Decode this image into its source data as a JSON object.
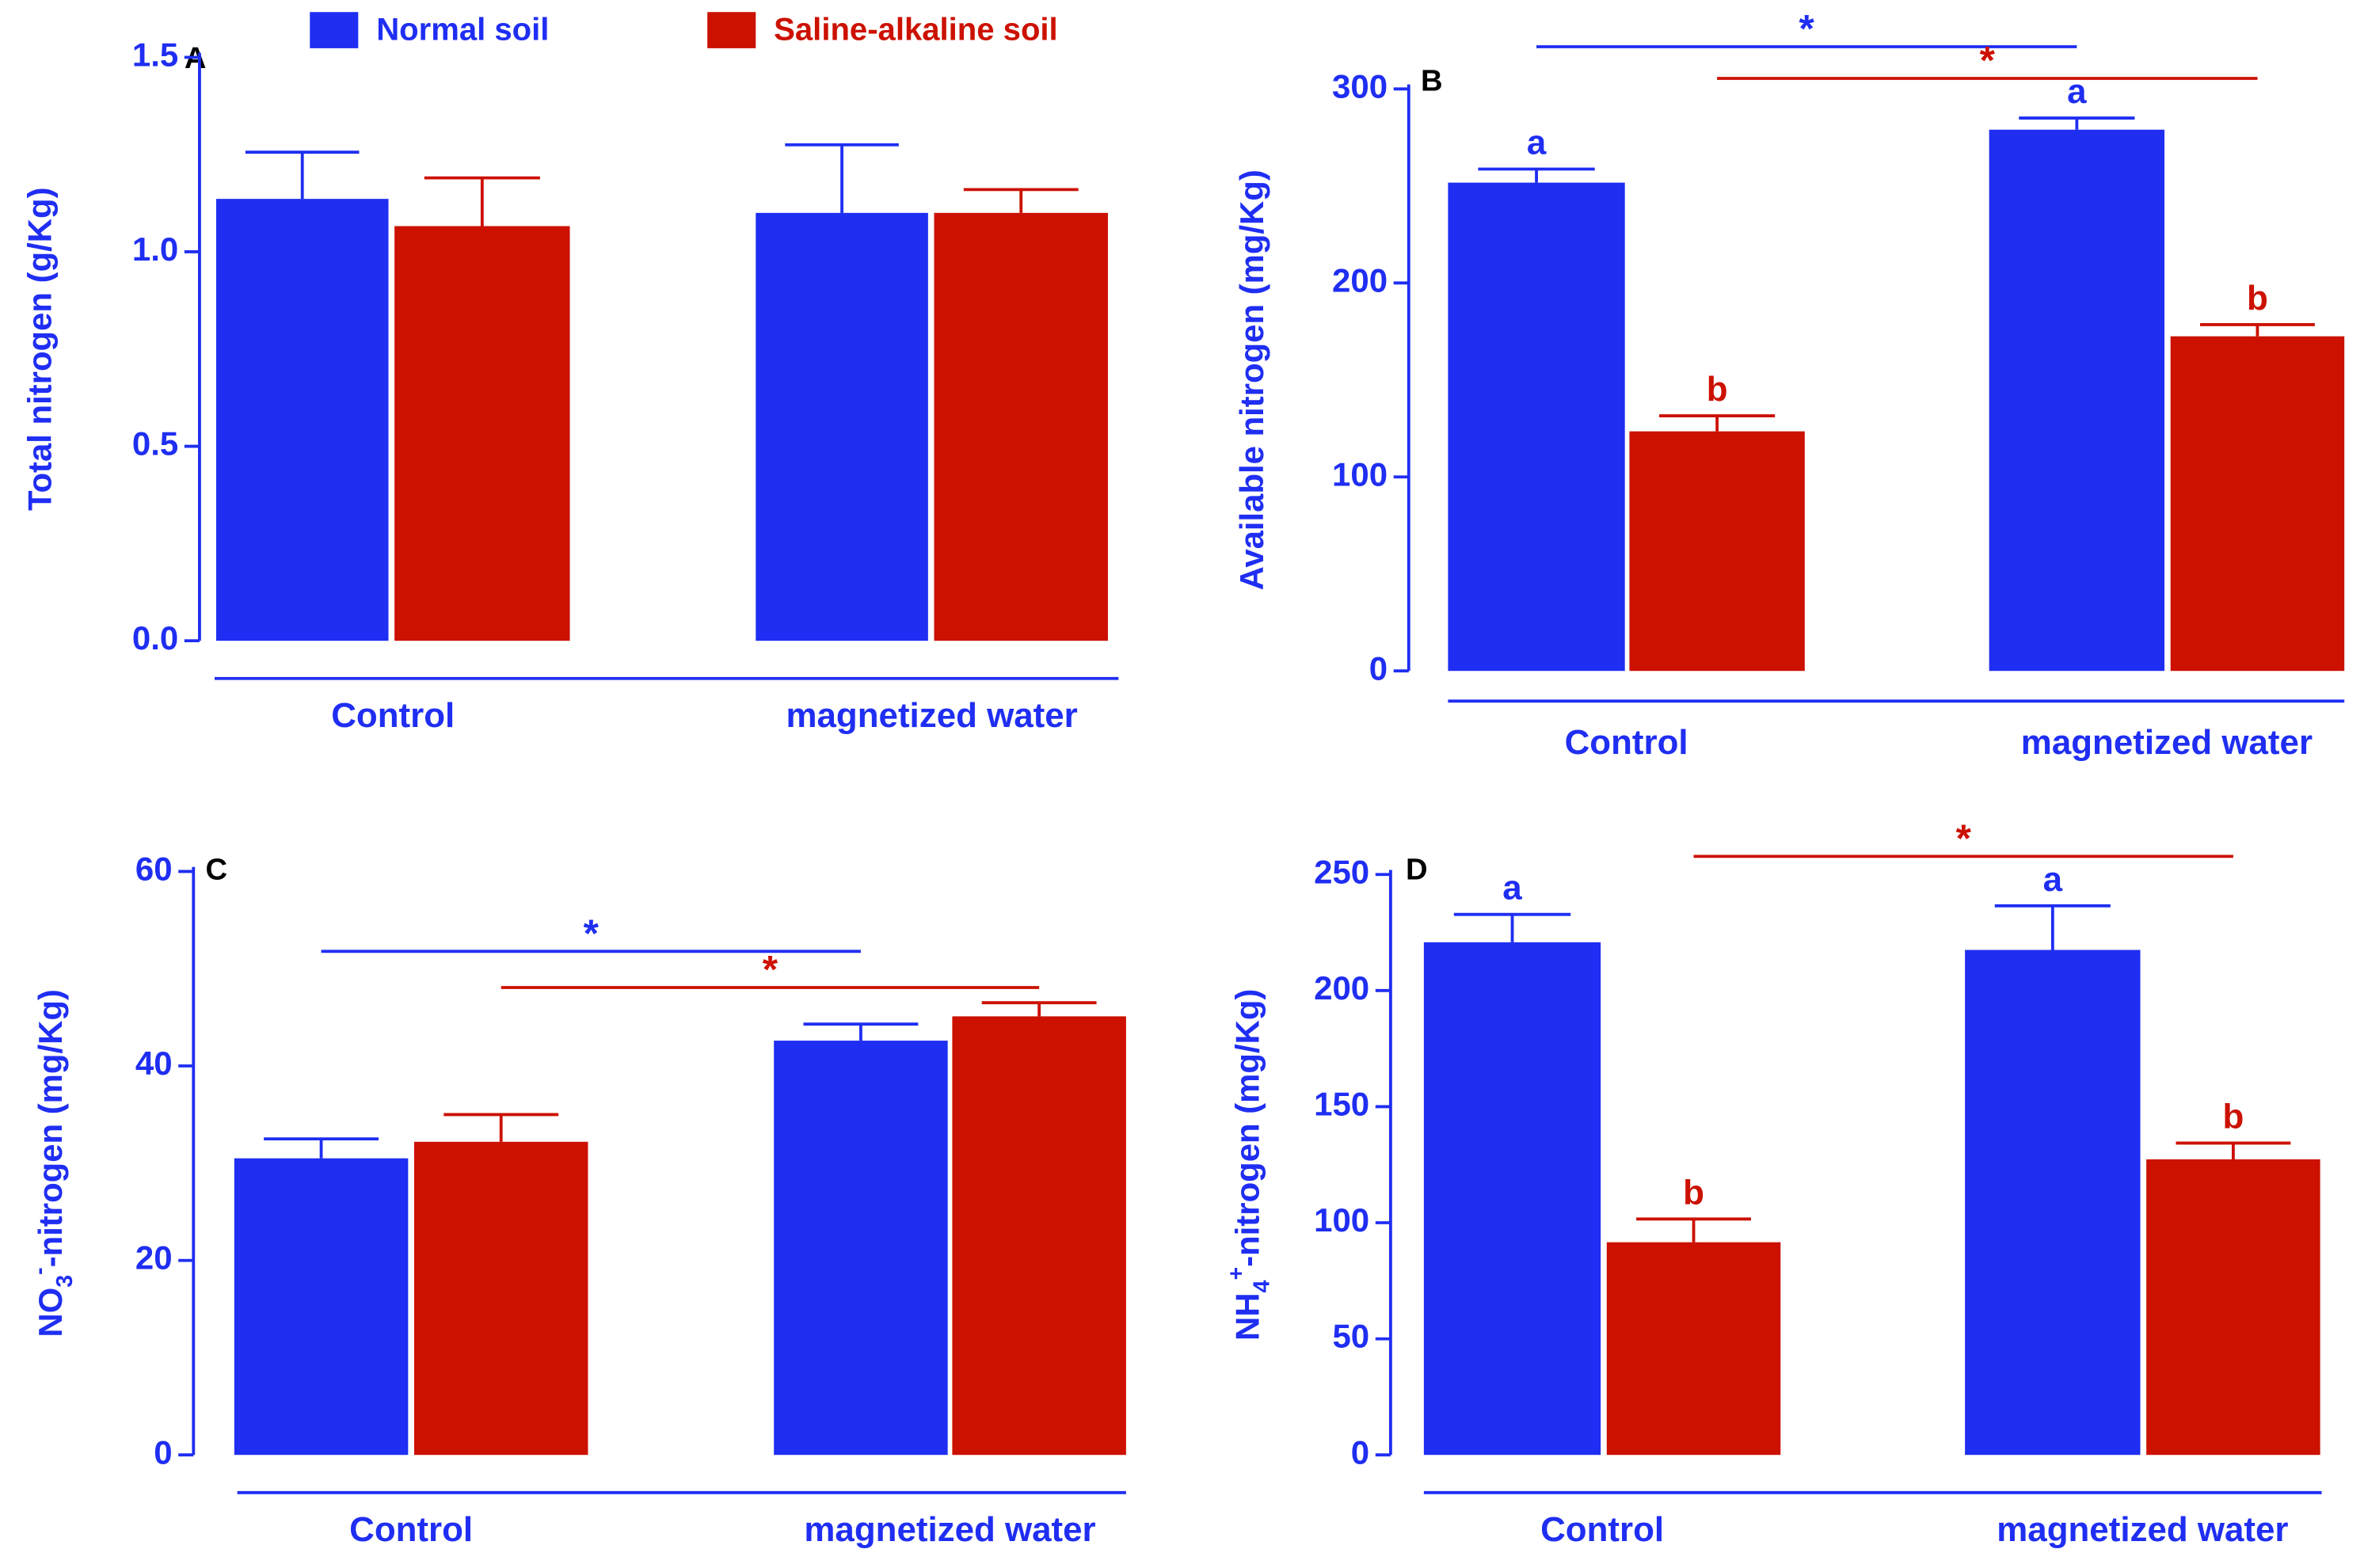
{
  "chart_data": [
    {
      "type": "bar",
      "panel": "A",
      "ylabel": [
        {
          "text": "Total nitrogen (g/Kg)"
        }
      ],
      "categories": [
        "Control",
        "magnetized water"
      ],
      "series": [
        {
          "name": "Normal soil",
          "color": "#1f2ef2",
          "values": [
            1.136,
            1.1
          ],
          "errors": [
            0.12,
            0.175
          ]
        },
        {
          "name": "Saline-alkaline soil",
          "color": "#cc1100",
          "values": [
            1.066,
            1.1
          ],
          "errors": [
            0.124,
            0.06
          ]
        }
      ],
      "ylim": [
        0,
        1.5
      ],
      "yticks": [
        {
          "value": 0,
          "label": "0.0"
        },
        0.5,
        {
          "value": 1,
          "label": "1.0"
        },
        1.5
      ]
    },
    {
      "type": "bar",
      "panel": "B",
      "ylabel": [
        {
          "text": "Available nitrogen  (mg/Kg)"
        }
      ],
      "categories": [
        "Control",
        "magnetized water"
      ],
      "series": [
        {
          "color": "#1f2ef2",
          "values": [
            251.7,
            279
          ],
          "errors": [
            7,
            6
          ],
          "letters": [
            "a",
            "a"
          ]
        },
        {
          "color": "#cc1100",
          "values": [
            123.5,
            172.5
          ],
          "errors": [
            8,
            6
          ],
          "letters": [
            "b",
            "b"
          ]
        }
      ],
      "significance": [
        {
          "series": 0,
          "label": "*"
        },
        {
          "series": 1,
          "label": "*"
        }
      ],
      "ylim": [
        0,
        300
      ],
      "yticks": [
        0,
        100,
        200,
        300
      ]
    },
    {
      "type": "bar",
      "panel": "C",
      "ylabel": [
        {
          "text": "NO"
        },
        {
          "text": "3",
          "shift": "sub"
        },
        {
          "text": "-",
          "shift": "super"
        },
        {
          "text": "-nitrogen  (mg/Kg)"
        }
      ],
      "categories": [
        "Control",
        "magnetized water"
      ],
      "series": [
        {
          "color": "#1f2ef2",
          "values": [
            30.5,
            42.6
          ],
          "errors": [
            2,
            1.7
          ]
        },
        {
          "color": "#cc1100",
          "values": [
            32.2,
            45.1
          ],
          "errors": [
            2.8,
            1.4
          ]
        }
      ],
      "significance": [
        {
          "series": 0,
          "label": "*"
        },
        {
          "series": 1,
          "label": "*"
        }
      ],
      "ylim": [
        0,
        60
      ],
      "yticks": [
        0,
        20,
        40,
        60
      ]
    },
    {
      "type": "bar",
      "panel": "D",
      "ylabel": [
        {
          "text": "NH"
        },
        {
          "text": "4",
          "shift": "sub"
        },
        {
          "text": "+",
          "shift": "super"
        },
        {
          "text": "-nitrogen  (mg/Kg)"
        }
      ],
      "categories": [
        "Control",
        "magnetized water"
      ],
      "series": [
        {
          "color": "#1f2ef2",
          "values": [
            220.8,
            217.5
          ],
          "errors": [
            12,
            19
          ],
          "letters": [
            "a",
            "a"
          ]
        },
        {
          "color": "#cc1100",
          "values": [
            91.6,
            127.3
          ],
          "errors": [
            10,
            7
          ],
          "letters": [
            "b",
            "b"
          ]
        }
      ],
      "significance": [
        {
          "series": 1,
          "label": "*"
        }
      ],
      "ylim": [
        0,
        250
      ],
      "yticks": [
        0,
        50,
        100,
        150,
        200,
        250
      ]
    }
  ]
}
